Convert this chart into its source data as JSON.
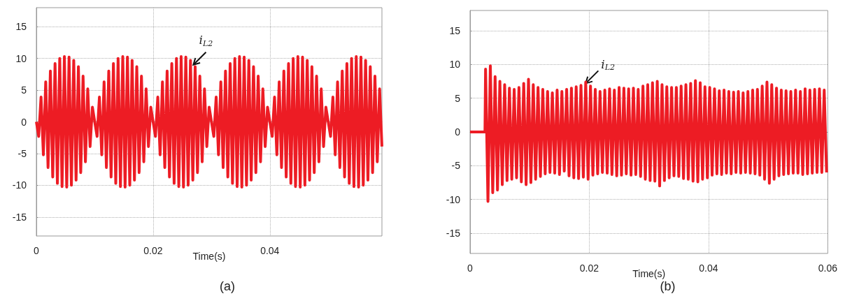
{
  "chart_data": [
    {
      "type": "line",
      "title": "(a)",
      "xlabel": "Time(s)",
      "xlim": [
        0,
        0.0592
      ],
      "xticks": [
        0,
        0.02,
        0.04
      ],
      "ylim": [
        -18,
        18
      ],
      "yticks": [
        -15,
        -10,
        -5,
        0,
        5,
        10,
        15
      ],
      "grid": true,
      "annotations": [
        {
          "text": "i$_{L2}$",
          "x": 0.0269,
          "y": 9.0
        }
      ],
      "series": [
        {
          "color": "#ed1c24",
          "x": [
            0,
            0.0004,
            0.0008,
            0.0012,
            0.0016,
            0.002,
            0.0024,
            0.0028,
            0.0032,
            0.0036,
            0.004,
            0.0044,
            0.0048,
            0.0052,
            0.0056,
            0.006,
            0.0064,
            0.0068,
            0.0072,
            0.0076,
            0.008,
            0.0084,
            0.0088,
            0.0092,
            0.0096,
            0.01,
            0.0104,
            0.0108,
            0.0112,
            0.0116,
            0.012,
            0.0124,
            0.0128,
            0.0132,
            0.0136,
            0.014,
            0.0144,
            0.0148,
            0.0152,
            0.0156,
            0.016,
            0.0164,
            0.0168,
            0.0172,
            0.0176,
            0.018,
            0.0184,
            0.0188,
            0.0192,
            0.0196,
            0.02,
            0.0204,
            0.0208,
            0.0212,
            0.0216,
            0.022,
            0.0224,
            0.0228,
            0.0232,
            0.0236,
            0.024,
            0.0244,
            0.0248,
            0.0252,
            0.0256,
            0.026,
            0.0264,
            0.0268,
            0.0272,
            0.0276,
            0.028,
            0.0284,
            0.0288,
            0.0292,
            0.0296,
            0.03,
            0.0304,
            0.0308,
            0.0312,
            0.0316,
            0.032,
            0.0324,
            0.0328,
            0.0332,
            0.0336,
            0.034,
            0.0344,
            0.0348,
            0.0352,
            0.0356,
            0.036,
            0.0364,
            0.0368,
            0.0372,
            0.0376,
            0.038,
            0.0384,
            0.0388,
            0.0392,
            0.0396,
            0.04,
            0.0404,
            0.0408,
            0.0412,
            0.0416,
            0.042,
            0.0424,
            0.0428,
            0.0432,
            0.0436,
            0.044,
            0.0444,
            0.0448,
            0.0452,
            0.0456,
            0.046,
            0.0464,
            0.0468,
            0.0472,
            0.0476,
            0.048,
            0.0484,
            0.0488,
            0.0492,
            0.0496,
            0.05,
            0.0504,
            0.0508,
            0.0512,
            0.0516,
            0.052,
            0.0524,
            0.0528,
            0.0532,
            0.0536,
            0.054,
            0.0544,
            0.0548,
            0.0552,
            0.0556,
            0.056,
            0.0564,
            0.0568,
            0.0572,
            0.0576,
            0.058,
            0.0584,
            0.0588,
            0.0592
          ],
          "values": [
            0,
            -2.3,
            3.9,
            -5.2,
            6.3,
            -7.2,
            8.0,
            -8.7,
            9.2,
            -9.7,
            10.0,
            -10.2,
            10.3,
            -10.3,
            10.2,
            -10.0,
            9.7,
            -9.2,
            8.7,
            -8.0,
            7.2,
            -6.3,
            5.2,
            -3.9,
            2.3,
            0,
            -2.3,
            3.9,
            -5.2,
            6.3,
            -7.2,
            8.0,
            -8.7,
            9.2,
            -9.7,
            10.0,
            -10.2,
            10.3,
            -10.3,
            10.2,
            -10.0,
            9.7,
            -9.2,
            8.7,
            -8.0,
            7.2,
            -6.3,
            5.2,
            -3.9,
            2.3,
            0,
            -2.3,
            3.9,
            -5.2,
            6.3,
            -7.2,
            8.0,
            -8.7,
            9.2,
            -9.7,
            10.0,
            -10.2,
            10.3,
            -10.3,
            10.2,
            -10.0,
            9.7,
            -9.2,
            8.7,
            -8.0,
            7.2,
            -6.3,
            5.2,
            -3.9,
            2.3,
            0,
            -2.3,
            3.9,
            -5.2,
            6.3,
            -7.2,
            8.0,
            -8.7,
            9.2,
            -9.7,
            10.0,
            -10.2,
            10.3,
            -10.3,
            10.2,
            -10.0,
            9.7,
            -9.2,
            8.7,
            -8.0,
            7.2,
            -6.3,
            5.2,
            -3.9,
            2.3,
            0,
            -2.3,
            3.9,
            -5.2,
            6.3,
            -7.2,
            8.0,
            -8.7,
            9.2,
            -9.7,
            10.0,
            -10.2,
            10.3,
            -10.3,
            10.2,
            -10.0,
            9.7,
            -9.2,
            8.7,
            -8.0,
            7.2,
            -6.3,
            5.2,
            -3.9,
            2.3,
            0,
            -2.3,
            3.9,
            -5.2,
            6.3,
            -7.2,
            8.0,
            -8.7,
            9.2,
            -9.7,
            10.0,
            -10.2,
            10.3,
            -10.3,
            10.2,
            -10.0,
            9.7,
            -9.2,
            8.7,
            -8.0,
            7.2,
            -6.3,
            5.2,
            -3.9
          ]
        }
      ]
    },
    {
      "type": "line",
      "title": "(b)",
      "xlabel": "Time(s)",
      "xlim": [
        0,
        0.06
      ],
      "xticks": [
        0,
        0.02,
        0.04,
        0.06
      ],
      "ylim": [
        -18,
        18
      ],
      "yticks": [
        -15,
        -10,
        -5,
        0,
        5,
        10,
        15
      ],
      "grid": true,
      "annotations": [
        {
          "text": "i$_{L2}$",
          "x": 0.0194,
          "y": 7.2
        }
      ],
      "series": [
        {
          "color": "#ed1c24",
          "x": [
            0,
            0.0025,
            0.0026,
            0.003,
            0.0034,
            0.0038,
            0.0042,
            0.0046,
            0.005,
            0.0054,
            0.0058,
            0.0062,
            0.0066,
            0.007,
            0.0074,
            0.0078,
            0.0082,
            0.0086,
            0.009,
            0.0094,
            0.0098,
            0.0102,
            0.0106,
            0.011,
            0.0114,
            0.0118,
            0.0122,
            0.0126,
            0.013,
            0.0134,
            0.0138,
            0.0142,
            0.0146,
            0.015,
            0.0154,
            0.0158,
            0.0162,
            0.0166,
            0.017,
            0.0174,
            0.0178,
            0.0182,
            0.0186,
            0.019,
            0.0194,
            0.0198,
            0.0202,
            0.0206,
            0.021,
            0.0214,
            0.0218,
            0.0222,
            0.0226,
            0.023,
            0.0234,
            0.0238,
            0.0242,
            0.0246,
            0.025,
            0.0254,
            0.0258,
            0.0262,
            0.0266,
            0.027,
            0.0274,
            0.0278,
            0.0282,
            0.0286,
            0.029,
            0.0294,
            0.0298,
            0.0302,
            0.0306,
            0.031,
            0.0314,
            0.0318,
            0.0322,
            0.0326,
            0.033,
            0.0334,
            0.0338,
            0.0342,
            0.0346,
            0.035,
            0.0354,
            0.0358,
            0.0362,
            0.0366,
            0.037,
            0.0374,
            0.0378,
            0.0382,
            0.0386,
            0.039,
            0.0394,
            0.0398,
            0.0402,
            0.0406,
            0.041,
            0.0414,
            0.0418,
            0.0422,
            0.0426,
            0.043,
            0.0434,
            0.0438,
            0.0442,
            0.0446,
            0.045,
            0.0454,
            0.0458,
            0.0462,
            0.0466,
            0.047,
            0.0474,
            0.0478,
            0.0482,
            0.0486,
            0.049,
            0.0494,
            0.0498,
            0.0502,
            0.0506,
            0.051,
            0.0514,
            0.0518,
            0.0522,
            0.0526,
            0.053,
            0.0534,
            0.0538,
            0.0542,
            0.0546,
            0.055,
            0.0554,
            0.0558,
            0.0562,
            0.0566,
            0.057,
            0.0574,
            0.0578,
            0.0582,
            0.0586,
            0.059,
            0.0594,
            0.0598
          ],
          "values": [
            0,
            0,
            9.3,
            -10.3,
            9.8,
            -9.0,
            8.2,
            -8.6,
            7.5,
            -7.8,
            7.0,
            -7.2,
            6.5,
            -7.0,
            6.3,
            -6.8,
            6.6,
            -7.4,
            7.2,
            -7.8,
            7.8,
            -7.5,
            7.0,
            -7.0,
            6.6,
            -6.6,
            6.3,
            -6.2,
            6.0,
            -6.0,
            5.8,
            -6.1,
            6.2,
            -6.3,
            6.0,
            -5.8,
            6.3,
            -6.5,
            6.5,
            -6.8,
            6.7,
            -6.9,
            6.9,
            -6.7,
            7.4,
            -7.0,
            6.8,
            -6.4,
            6.3,
            -6.2,
            6.0,
            -6.0,
            6.2,
            -6.1,
            6.4,
            -6.3,
            6.2,
            -6.5,
            6.6,
            -6.4,
            6.5,
            -6.2,
            6.4,
            -6.4,
            6.5,
            -6.3,
            6.3,
            -6.6,
            6.8,
            -7.0,
            7.0,
            -7.2,
            7.3,
            -7.3,
            7.5,
            -8.0,
            7.0,
            -7.2,
            6.7,
            -6.8,
            6.6,
            -6.5,
            6.6,
            -6.6,
            6.8,
            -6.9,
            7.0,
            -7.0,
            7.2,
            -7.3,
            7.6,
            -7.4,
            7.3,
            -7.0,
            6.7,
            -6.8,
            6.6,
            -6.4,
            6.4,
            -6.2,
            6.1,
            -6.3,
            6.2,
            -6.1,
            6.0,
            -6.2,
            5.9,
            -6.0,
            6.0,
            -6.1,
            5.8,
            -6.0,
            6.0,
            -6.1,
            6.2,
            -6.2,
            6.3,
            -6.4,
            6.8,
            -7.0,
            7.4,
            -7.6,
            7.0,
            -7.0,
            6.5,
            -6.5,
            6.2,
            -6.3,
            6.1,
            -6.2,
            6.0,
            -6.1,
            6.2,
            -6.1,
            6.0,
            -6.3,
            6.4,
            -6.2,
            6.2,
            -6.1,
            6.3,
            -6.0,
            6.4,
            -6.0,
            6.2,
            -6.0
          ]
        }
      ]
    }
  ]
}
